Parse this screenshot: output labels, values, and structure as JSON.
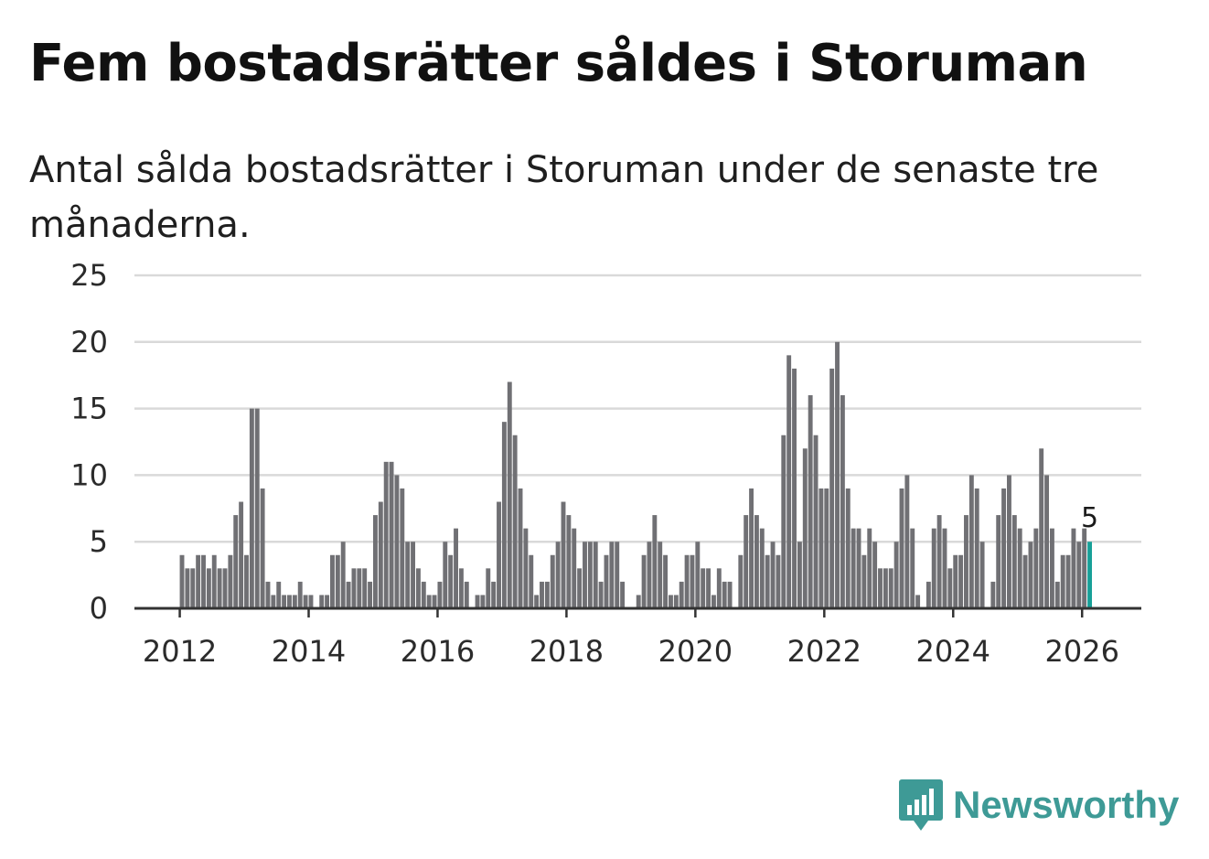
{
  "title": "Fem bostadsrätter såldes i Storuman",
  "subtitle": "Antal sålda bostadsrätter i Storuman under de senaste tre månaderna.",
  "brand": {
    "name": "Newsworthy",
    "color": "#3e9a96",
    "icon": "newsworthy-bar-chart-logo"
  },
  "colors": {
    "bar": "#707074",
    "highlight": "#17a098",
    "grid": "#d9d9d9",
    "axis": "#333333"
  },
  "chart_data": {
    "type": "bar",
    "title": "Fem bostadsrätter såldes i Storuman",
    "xlabel": "",
    "ylabel": "",
    "ylim": [
      0,
      25
    ],
    "yticks": [
      0,
      5,
      10,
      15,
      20,
      25
    ],
    "xticks": [
      "2012",
      "2014",
      "2016",
      "2018",
      "2020",
      "2022",
      "2024",
      "2026"
    ],
    "start_year": 2012,
    "start_month": 1,
    "grid": true,
    "highlight_label": "5",
    "values": [
      4,
      3,
      3,
      4,
      4,
      3,
      4,
      3,
      3,
      4,
      7,
      8,
      4,
      15,
      15,
      9,
      2,
      1,
      2,
      1,
      1,
      1,
      2,
      1,
      1,
      0,
      1,
      1,
      4,
      4,
      5,
      2,
      3,
      3,
      3,
      2,
      7,
      8,
      11,
      11,
      10,
      9,
      5,
      5,
      3,
      2,
      1,
      1,
      2,
      5,
      4,
      6,
      3,
      2,
      0,
      1,
      1,
      3,
      2,
      8,
      14,
      17,
      13,
      9,
      6,
      4,
      1,
      2,
      2,
      4,
      5,
      8,
      7,
      6,
      3,
      5,
      5,
      5,
      2,
      4,
      5,
      5,
      2,
      0,
      0,
      1,
      4,
      5,
      7,
      5,
      4,
      1,
      1,
      2,
      4,
      4,
      5,
      3,
      3,
      1,
      3,
      2,
      2,
      0,
      4,
      7,
      9,
      7,
      6,
      4,
      5,
      4,
      13,
      19,
      18,
      5,
      12,
      16,
      13,
      9,
      9,
      18,
      20,
      16,
      9,
      6,
      6,
      4,
      6,
      5,
      3,
      3,
      3,
      5,
      9,
      10,
      6,
      1,
      0,
      2,
      6,
      7,
      6,
      3,
      4,
      4,
      7,
      10,
      9,
      5,
      0,
      2,
      7,
      9,
      10,
      7,
      6,
      4,
      5,
      6,
      12,
      10,
      6,
      2,
      4,
      4,
      6,
      5,
      6,
      5
    ]
  }
}
